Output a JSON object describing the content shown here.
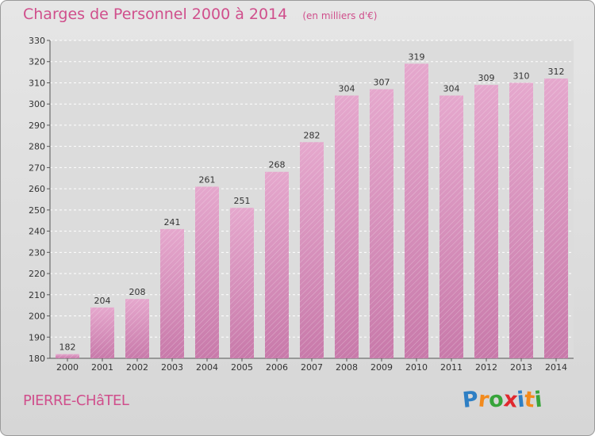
{
  "chart_data": {
    "type": "bar",
    "title": "Charges de Personnel 2000 à 2014",
    "subtitle": "(en milliers d'€)",
    "categories": [
      "2000",
      "2001",
      "2002",
      "2003",
      "2004",
      "2005",
      "2006",
      "2007",
      "2008",
      "2009",
      "2010",
      "2011",
      "2012",
      "2013",
      "2014"
    ],
    "values": [
      182,
      204,
      208,
      241,
      261,
      251,
      268,
      282,
      304,
      307,
      319,
      304,
      309,
      310,
      312
    ],
    "ylim": [
      180,
      330
    ],
    "yticks": [
      180,
      190,
      200,
      210,
      220,
      230,
      240,
      250,
      260,
      270,
      280,
      290,
      300,
      310,
      320,
      330
    ],
    "xlabel": "",
    "ylabel": "",
    "grid": true,
    "bar_color": "#c87aaa",
    "bar_color_light": "#e5a8cd"
  },
  "footer": {
    "commune": "PIERRE-CHâTEL",
    "logo_letters": [
      "P",
      "r",
      "o",
      "x",
      "i",
      "t",
      "i"
    ],
    "logo_colors": [
      "#2e7fc4",
      "#f28a1c",
      "#37a43a",
      "#e0282e",
      "#2e7fc4",
      "#f28a1c",
      "#37a43a"
    ]
  }
}
